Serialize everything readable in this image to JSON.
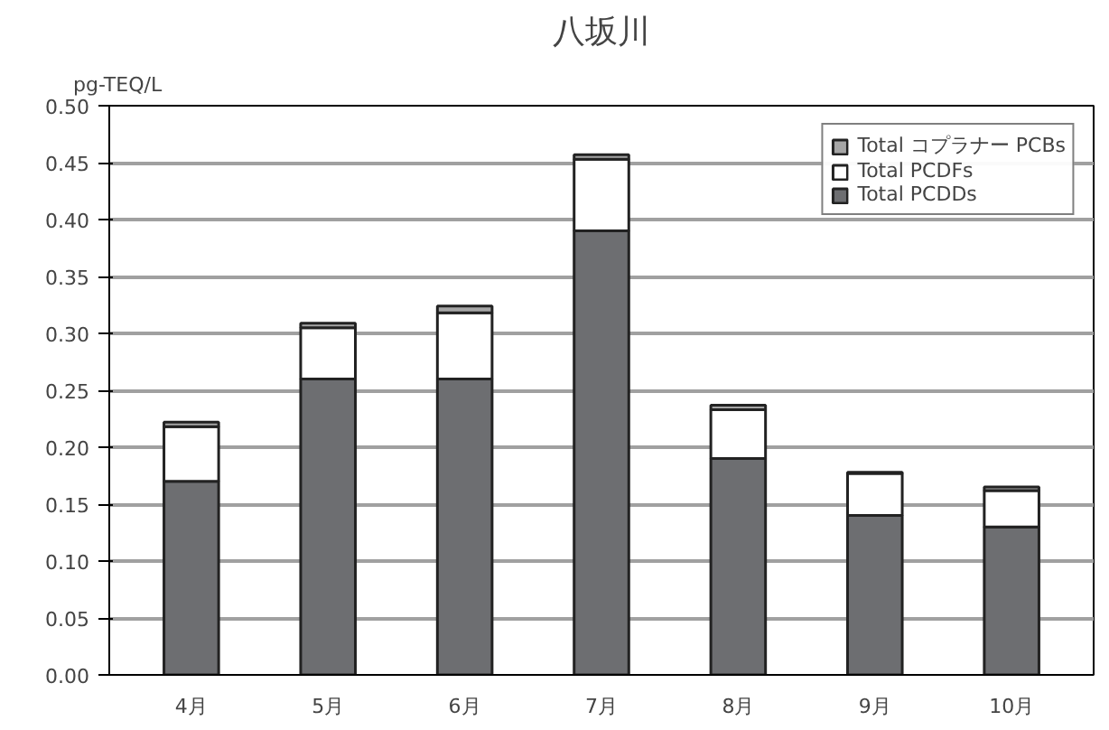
{
  "chart_data": {
    "type": "bar",
    "title": "八坂川",
    "ylabel": "pg-TEQ/L",
    "categories": [
      "4月",
      "5月",
      "6月",
      "7月",
      "8月",
      "9月",
      "10月"
    ],
    "stacked": true,
    "series": [
      {
        "name": "Total PCDDs",
        "color": "#6d6e71",
        "values": [
          0.17,
          0.26,
          0.26,
          0.39,
          0.19,
          0.14,
          0.13
        ]
      },
      {
        "name": "Total PCDFs",
        "color": "#ffffff",
        "values": [
          0.048,
          0.045,
          0.058,
          0.063,
          0.043,
          0.037,
          0.032
        ]
      },
      {
        "name": "Total コプラナー PCBs",
        "color": "#a6a6a6",
        "values": [
          0.004,
          0.004,
          0.006,
          0.004,
          0.004,
          0.001,
          0.003
        ]
      }
    ],
    "ylim": [
      0,
      0.5
    ],
    "yticks": [
      {
        "value": 0,
        "label": "0.00"
      },
      {
        "value": 0.05,
        "label": "0.05"
      },
      {
        "value": 0.1,
        "label": "0.10"
      },
      {
        "value": 0.15,
        "label": "0.15"
      },
      {
        "value": 0.2,
        "label": "0.20"
      },
      {
        "value": 0.25,
        "label": "0.25"
      },
      {
        "value": 0.3,
        "label": "0.30"
      },
      {
        "value": 0.35,
        "label": "0.35"
      },
      {
        "value": 0.4,
        "label": "0.40"
      },
      {
        "value": 0.45,
        "label": "0.45"
      },
      {
        "value": 0.5,
        "label": "0.50"
      }
    ],
    "grid": "y",
    "legend": "top right"
  }
}
